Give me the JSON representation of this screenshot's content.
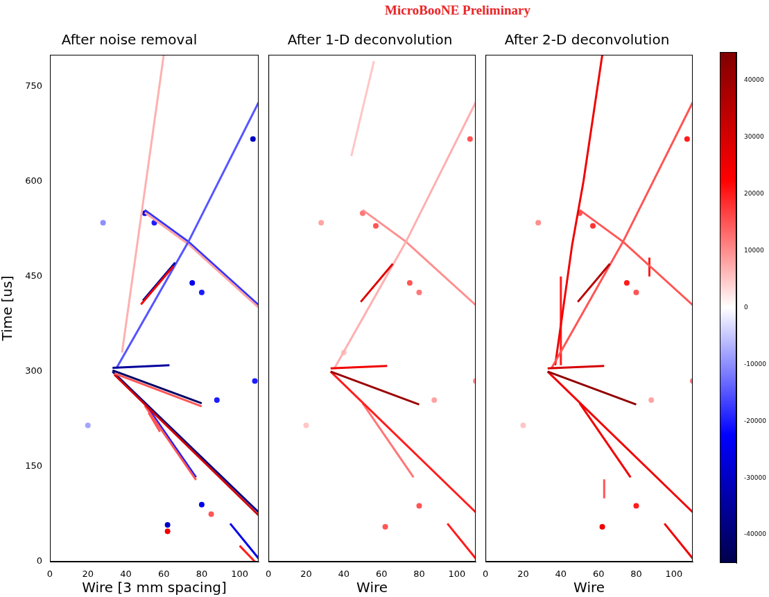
{
  "title": "MicroBooNE Preliminary",
  "colorbar": {
    "lim": [
      -45000,
      45000
    ],
    "ticks": [
      -40000,
      -30000,
      -20000,
      -10000,
      0,
      10000,
      20000,
      30000,
      40000
    ]
  },
  "chart_data": [
    {
      "type": "heatmap",
      "title": "After noise removal",
      "x_label": "Wire [3 mm spacing]",
      "y_label": "Time [us]",
      "xlim": [
        0,
        110
      ],
      "xticks": [
        0,
        20,
        40,
        60,
        80,
        100
      ],
      "ylim": [
        0,
        800
      ],
      "yticks": [
        0,
        150,
        300,
        450,
        600,
        750
      ],
      "grid": false,
      "tracks": [
        {
          "wire": [
            33,
            63
          ],
          "time": [
            306,
            310
          ],
          "charge": -35000
        },
        {
          "wire": [
            33,
            80
          ],
          "time": [
            302,
            250
          ],
          "charge": -42000
        },
        {
          "wire": [
            34,
            80
          ],
          "time": [
            297,
            245
          ],
          "charge": 15000
        },
        {
          "wire": [
            34,
            110
          ],
          "time": [
            295,
            73
          ],
          "charge": 30000
        },
        {
          "wire": [
            33,
            110
          ],
          "time": [
            300,
            78
          ],
          "charge": -38000
        },
        {
          "wire": [
            48,
            65
          ],
          "time": [
            406,
            466
          ],
          "charge": 25000
        },
        {
          "wire": [
            49,
            66
          ],
          "time": [
            412,
            472
          ],
          "charge": -35000
        },
        {
          "wire": [
            35,
            73,
            110
          ],
          "time": [
            305,
            505,
            725
          ],
          "charge": -15000
        },
        {
          "wire": [
            50,
            73,
            110
          ],
          "time": [
            551,
            501,
            401
          ],
          "charge": 8000
        },
        {
          "wire": [
            50,
            73,
            110
          ],
          "time": [
            555,
            505,
            405
          ],
          "charge": -18000
        },
        {
          "wire": [
            38,
            60
          ],
          "time": [
            330,
            800
          ],
          "charge": 7000
        },
        {
          "wire": [
            50,
            77
          ],
          "time": [
            246,
            129
          ],
          "charge": 15000
        },
        {
          "wire": [
            50,
            77
          ],
          "time": [
            250,
            133
          ],
          "charge": -20000
        },
        {
          "wire": [
            52,
            58
          ],
          "time": [
            235,
            205
          ],
          "charge": 15000
        },
        {
          "wire": [
            95,
            110
          ],
          "time": [
            60,
            5
          ],
          "charge": -25000
        },
        {
          "wire": [
            100,
            108
          ],
          "time": [
            25,
            0
          ],
          "charge": 20000
        }
      ],
      "blobs": [
        {
          "wire": 50,
          "time": 550,
          "charge": -25000
        },
        {
          "wire": 55,
          "time": 535,
          "charge": -20000
        },
        {
          "wire": 75,
          "time": 440,
          "charge": -25000
        },
        {
          "wire": 80,
          "time": 425,
          "charge": -20000
        },
        {
          "wire": 62,
          "time": 58,
          "charge": -30000
        },
        {
          "wire": 62,
          "time": 48,
          "charge": 25000
        },
        {
          "wire": 80,
          "time": 90,
          "charge": -25000
        },
        {
          "wire": 85,
          "time": 75,
          "charge": 15000
        },
        {
          "wire": 88,
          "time": 255,
          "charge": -20000
        },
        {
          "wire": 28,
          "time": 535,
          "charge": -10000
        },
        {
          "wire": 108,
          "time": 285,
          "charge": -20000
        },
        {
          "wire": 107,
          "time": 667,
          "charge": -30000
        },
        {
          "wire": 20,
          "time": 215,
          "charge": -8000
        }
      ]
    },
    {
      "type": "heatmap",
      "title": "After 1-D deconvolution",
      "x_label": "Wire",
      "xlim": [
        0,
        110
      ],
      "xticks": [
        0,
        20,
        40,
        60,
        80,
        100
      ],
      "ylim": [
        0,
        800
      ],
      "yticks": [
        0,
        150,
        300,
        450,
        600,
        750
      ],
      "grid": false,
      "tick_labels": "x",
      "tracks": [
        {
          "wire": [
            33,
            63
          ],
          "time": [
            305,
            309
          ],
          "charge": 25000
        },
        {
          "wire": [
            33,
            80
          ],
          "time": [
            300,
            248
          ],
          "charge": 40000
        },
        {
          "wire": [
            33,
            110
          ],
          "time": [
            300,
            78
          ],
          "charge": 20000
        },
        {
          "wire": [
            49,
            66
          ],
          "time": [
            410,
            470
          ],
          "charge": 28000
        },
        {
          "wire": [
            35,
            73,
            110
          ],
          "time": [
            305,
            505,
            725
          ],
          "charge": 7000
        },
        {
          "wire": [
            50,
            73,
            110
          ],
          "time": [
            555,
            505,
            405
          ],
          "charge": 10000
        },
        {
          "wire": [
            44,
            56
          ],
          "time": [
            640,
            790
          ],
          "charge": 5000
        },
        {
          "wire": [
            50,
            77
          ],
          "time": [
            250,
            133
          ],
          "charge": 12000
        },
        {
          "wire": [
            95,
            110
          ],
          "time": [
            60,
            5
          ],
          "charge": 20000
        }
      ],
      "blobs": [
        {
          "wire": 50,
          "time": 550,
          "charge": 12000
        },
        {
          "wire": 57,
          "time": 530,
          "charge": 15000
        },
        {
          "wire": 75,
          "time": 440,
          "charge": 15000
        },
        {
          "wire": 80,
          "time": 425,
          "charge": 12000
        },
        {
          "wire": 62,
          "time": 55,
          "charge": 15000
        },
        {
          "wire": 80,
          "time": 88,
          "charge": 15000
        },
        {
          "wire": 88,
          "time": 255,
          "charge": 8000
        },
        {
          "wire": 28,
          "time": 535,
          "charge": 8000
        },
        {
          "wire": 110,
          "time": 285,
          "charge": 10000
        },
        {
          "wire": 107,
          "time": 667,
          "charge": 15000
        },
        {
          "wire": 20,
          "time": 215,
          "charge": 5000
        },
        {
          "wire": 40,
          "time": 330,
          "charge": 5000
        }
      ]
    },
    {
      "type": "heatmap",
      "title": "After 2-D deconvolution",
      "x_label": "Wire",
      "xlim": [
        0,
        110
      ],
      "xticks": [
        0,
        20,
        40,
        60,
        80,
        100
      ],
      "ylim": [
        0,
        800
      ],
      "yticks": [
        0,
        150,
        300,
        450,
        600,
        750
      ],
      "grid": false,
      "tick_labels": "x",
      "tracks": [
        {
          "wire": [
            33,
            63
          ],
          "time": [
            305,
            309
          ],
          "charge": 30000
        },
        {
          "wire": [
            33,
            80
          ],
          "time": [
            300,
            248
          ],
          "charge": 42000
        },
        {
          "wire": [
            33,
            110
          ],
          "time": [
            300,
            78
          ],
          "charge": 25000
        },
        {
          "wire": [
            49,
            66
          ],
          "time": [
            410,
            470
          ],
          "charge": 35000
        },
        {
          "wire": [
            35,
            73,
            110
          ],
          "time": [
            305,
            505,
            725
          ],
          "charge": 15000
        },
        {
          "wire": [
            50,
            73,
            110
          ],
          "time": [
            555,
            505,
            405
          ],
          "charge": 15000
        },
        {
          "wire": [
            37,
            46,
            52,
            62
          ],
          "time": [
            310,
            500,
            600,
            800
          ],
          "charge": 25000
        },
        {
          "wire": [
            50,
            77
          ],
          "time": [
            250,
            133
          ],
          "charge": 25000
        },
        {
          "wire": [
            95,
            110
          ],
          "time": [
            60,
            5
          ],
          "charge": 25000
        },
        {
          "wire": [
            40,
            40
          ],
          "time": [
            310,
            450
          ],
          "charge": 20000
        },
        {
          "wire": [
            87,
            87
          ],
          "time": [
            450,
            480
          ],
          "charge": 20000
        },
        {
          "wire": [
            63,
            63
          ],
          "time": [
            100,
            130
          ],
          "charge": 15000
        }
      ],
      "blobs": [
        {
          "wire": 50,
          "time": 550,
          "charge": 15000
        },
        {
          "wire": 57,
          "time": 530,
          "charge": 18000
        },
        {
          "wire": 75,
          "time": 440,
          "charge": 20000
        },
        {
          "wire": 80,
          "time": 425,
          "charge": 15000
        },
        {
          "wire": 62,
          "time": 55,
          "charge": 25000
        },
        {
          "wire": 80,
          "time": 88,
          "charge": 20000
        },
        {
          "wire": 88,
          "time": 255,
          "charge": 8000
        },
        {
          "wire": 28,
          "time": 535,
          "charge": 10000
        },
        {
          "wire": 110,
          "time": 285,
          "charge": 12000
        },
        {
          "wire": 107,
          "time": 667,
          "charge": 20000
        },
        {
          "wire": 20,
          "time": 215,
          "charge": 5000
        }
      ]
    }
  ]
}
